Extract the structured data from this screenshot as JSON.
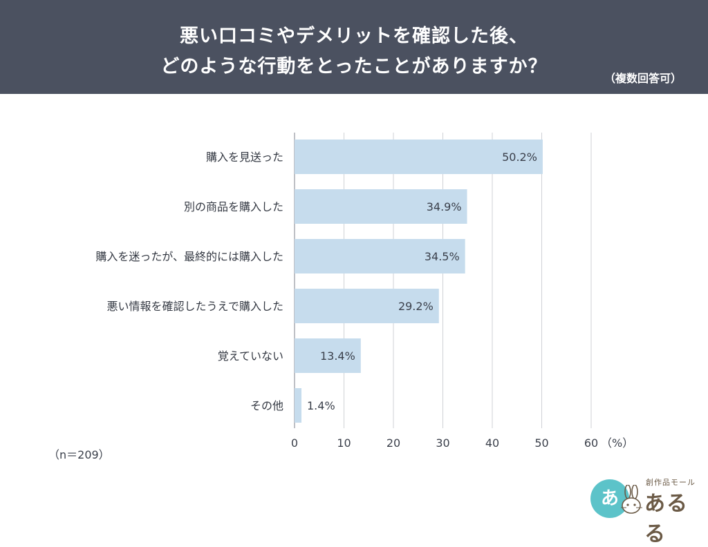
{
  "header": {
    "title_line1": "悪い口コミやデメリットを確認した後、",
    "title_line2": "どのような行動をとったことがありますか？",
    "note": "（複数回答可）"
  },
  "chart_data": {
    "type": "bar",
    "orientation": "horizontal",
    "categories": [
      "購入を見送った",
      "別の商品を購入した",
      "購入を迷ったが、最終的には購入した",
      "悪い情報を確認したうえで購入した",
      "覚えていない",
      "その他"
    ],
    "values": [
      50.2,
      34.9,
      34.5,
      29.2,
      13.4,
      1.4
    ],
    "value_labels": [
      "50.2%",
      "34.9%",
      "34.5%",
      "29.2%",
      "13.4%",
      "1.4%"
    ],
    "xlim": [
      0,
      60
    ],
    "ticks": [
      0,
      10,
      20,
      30,
      40,
      50,
      60
    ],
    "unit_label": "（%）",
    "grid": true,
    "bar_color": "#c6dced",
    "grid_color": "#cfd1d5"
  },
  "sample_note": "（n＝209）",
  "logo": {
    "circle_text": "あ",
    "small_text": "創作品モール",
    "main_text": "あるる",
    "color": "#5cc3c9"
  }
}
